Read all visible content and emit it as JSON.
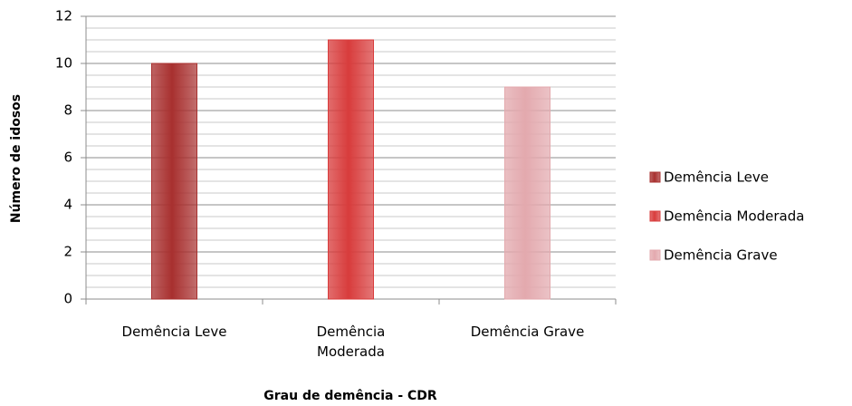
{
  "chart_data": {
    "type": "bar",
    "xlabel": "Grau de demência - CDR",
    "ylabel": "Número de idosos",
    "categories": [
      "Demência Leve",
      "Demência Moderada",
      "Demência Grave"
    ],
    "values": [
      10,
      11,
      9
    ],
    "colors": [
      "#a8302f",
      "#d83c3c",
      "#e3a9ae"
    ],
    "legend": [
      "Demência Leve",
      "Demência Moderada",
      "Demência Grave"
    ],
    "ylim": [
      0,
      12
    ],
    "yticks": [
      0,
      2,
      4,
      6,
      8,
      10,
      12
    ],
    "yminorticks": [
      0.5,
      1,
      1.5,
      2.5,
      3,
      3.5,
      4.5,
      5,
      5.5,
      6.5,
      7,
      7.5,
      8.5,
      9,
      9.5,
      10.5,
      11,
      11.5
    ],
    "grid": true,
    "legend_position": "right"
  }
}
